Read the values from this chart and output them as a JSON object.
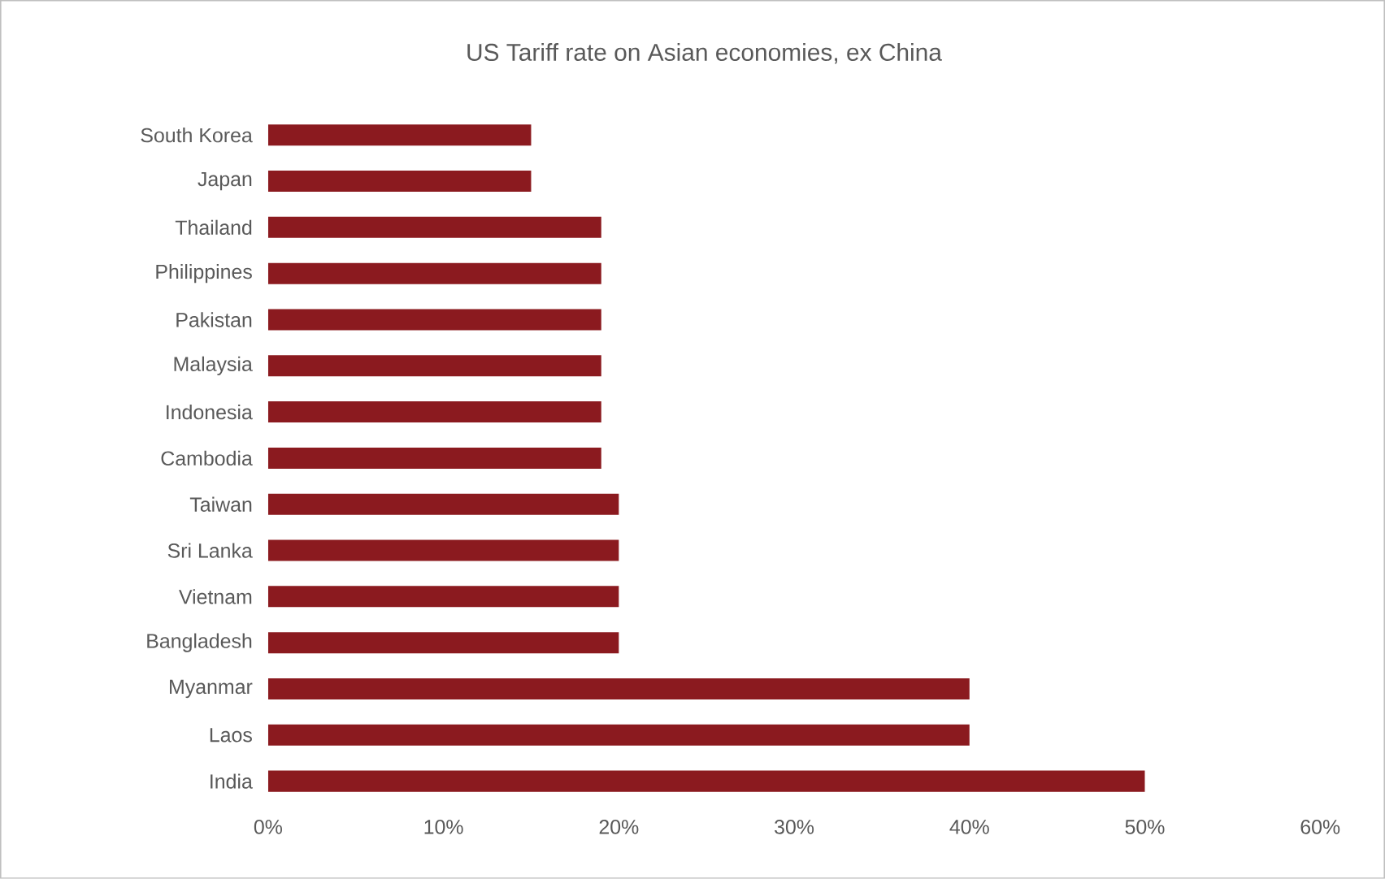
{
  "chart_data": {
    "type": "bar",
    "orientation": "horizontal",
    "title": "US Tariff rate on Asian economies, ex China",
    "categories": [
      "South Korea",
      "Japan",
      "Thailand",
      "Philippines",
      "Pakistan",
      "Malaysia",
      "Indonesia",
      "Cambodia",
      "Taiwan",
      "Sri Lanka",
      "Vietnam",
      "Bangladesh",
      "Myanmar",
      "Laos",
      "India"
    ],
    "values": [
      15,
      15,
      19,
      19,
      19,
      19,
      19,
      19,
      20,
      20,
      20,
      20,
      40,
      40,
      50
    ],
    "color": "#8b1a1f",
    "xlim": [
      0,
      60
    ],
    "xticks": [
      {
        "value": 0,
        "label": "0%"
      },
      {
        "value": 10,
        "label": "10%"
      },
      {
        "value": 20,
        "label": "20%"
      },
      {
        "value": 30,
        "label": "30%"
      },
      {
        "value": 40,
        "label": "40%"
      },
      {
        "value": 50,
        "label": "50%"
      },
      {
        "value": 60,
        "label": "60%"
      }
    ],
    "grid": false
  }
}
